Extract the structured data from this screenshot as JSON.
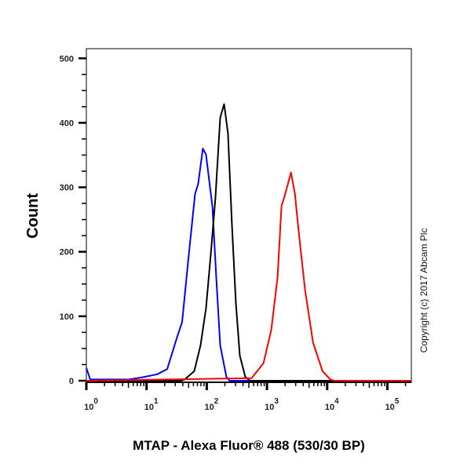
{
  "chart_data": {
    "type": "line",
    "title": "",
    "xlabel": "MTAP - Alexa Fluor® 488 (530/30 BP)",
    "ylabel": "Count",
    "x_scale": "log",
    "xlim": [
      1,
      250000
    ],
    "ylim": [
      0,
      515
    ],
    "yticks": [
      0,
      100,
      200,
      300,
      400,
      500
    ],
    "xticks": [
      {
        "base": "10",
        "exp": "0",
        "value": 1
      },
      {
        "base": "10",
        "exp": "1",
        "value": 10
      },
      {
        "base": "10",
        "exp": "2",
        "value": 100
      },
      {
        "base": "10",
        "exp": "3",
        "value": 1000
      },
      {
        "base": "10",
        "exp": "4",
        "value": 10000
      },
      {
        "base": "10",
        "exp": "5",
        "value": 100000
      }
    ],
    "grid": false,
    "annotation": "Copyright (c) 2017 Abcam Plc",
    "series": [
      {
        "color": "#0000ff",
        "points": [
          [
            1,
            20
          ],
          [
            1.16,
            2
          ],
          [
            5.2,
            2
          ],
          [
            8.2,
            5
          ],
          [
            15,
            10
          ],
          [
            22,
            18
          ],
          [
            32,
            67
          ],
          [
            39,
            91
          ],
          [
            50,
            193
          ],
          [
            64,
            290
          ],
          [
            72,
            305
          ],
          [
            86,
            360
          ],
          [
            97,
            351
          ],
          [
            124,
            270
          ],
          [
            144,
            160
          ],
          [
            167,
            55
          ],
          [
            212,
            6
          ],
          [
            239,
            0
          ],
          [
            250000,
            0
          ]
        ]
      },
      {
        "color": "#000000",
        "points": [
          [
            1,
            0
          ],
          [
            37,
            0
          ],
          [
            43,
            2
          ],
          [
            62,
            15
          ],
          [
            79,
            55
          ],
          [
            97,
            112
          ],
          [
            116,
            193
          ],
          [
            139,
            283
          ],
          [
            167,
            408
          ],
          [
            194,
            429
          ],
          [
            225,
            384
          ],
          [
            262,
            241
          ],
          [
            305,
            120
          ],
          [
            354,
            39
          ],
          [
            437,
            6
          ],
          [
            524,
            0
          ],
          [
            250000,
            0
          ]
        ]
      },
      {
        "color": "#ff0000",
        "points": [
          [
            1,
            0
          ],
          [
            556,
            4
          ],
          [
            873,
            27
          ],
          [
            1180,
            79
          ],
          [
            1500,
            161
          ],
          [
            1745,
            271
          ],
          [
            1970,
            287
          ],
          [
            2505,
            323
          ],
          [
            2910,
            290
          ],
          [
            3380,
            229
          ],
          [
            4300,
            140
          ],
          [
            5820,
            59
          ],
          [
            8350,
            15
          ],
          [
            11270,
            2
          ],
          [
            13100,
            0
          ],
          [
            250000,
            0
          ]
        ]
      }
    ]
  }
}
